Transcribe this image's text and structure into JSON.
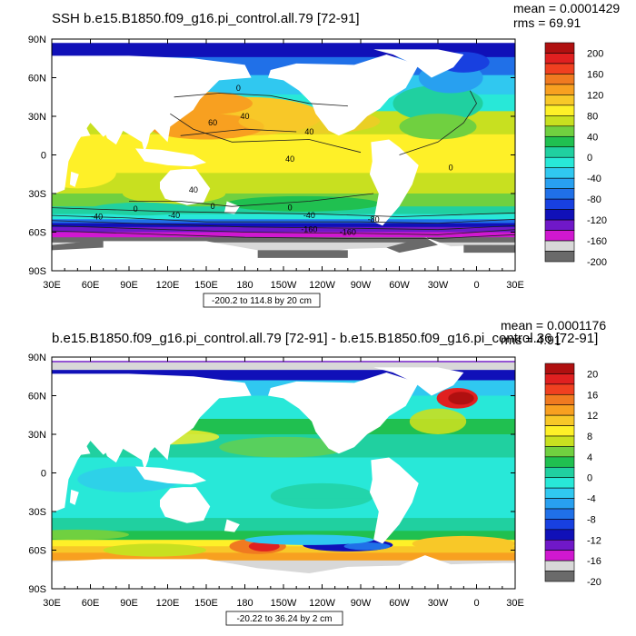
{
  "chart_data": [
    {
      "type": "heatmap",
      "title": "SSH b.e15.B1850.f09_g16.pi_control.all.79 [72-91]",
      "stats": {
        "mean": "mean = 0.0001429",
        "rms": "rms = 69.91"
      },
      "subtitle": "-200.2 to 114.8 by 20 cm",
      "x_ticks": [
        "30E",
        "60E",
        "90E",
        "120E",
        "150E",
        "180",
        "150W",
        "120W",
        "90W",
        "60W",
        "30W",
        "0",
        "30E"
      ],
      "y_ticks": [
        "90N",
        "60N",
        "30N",
        "0",
        "30S",
        "60S",
        "90S"
      ],
      "colorbar": {
        "labels": [
          "200",
          "160",
          "120",
          "80",
          "40",
          "0",
          "-40",
          "-80",
          "-120",
          "-160",
          "-200"
        ],
        "colors": [
          "#b01010",
          "#e02020",
          "#f04020",
          "#f07a20",
          "#f8a020",
          "#f8c828",
          "#fef028",
          "#c8e020",
          "#70d040",
          "#20c050",
          "#20d0a0",
          "#28e8d8",
          "#30c8f0",
          "#28a0f0",
          "#2070e8",
          "#1840e0",
          "#1010b8",
          "#7018c8",
          "#d018d0",
          "#d8d8d8",
          "#6a6a6a"
        ]
      },
      "contour_labels": [
        "0",
        "40",
        "60",
        "40",
        "40",
        "40",
        "0",
        "0",
        "-40",
        "-160",
        "0",
        "-40",
        "-40",
        "-80",
        "-160",
        "0"
      ]
    },
    {
      "type": "heatmap",
      "title": "b.e15.B1850.f09_g16.pi_control.all.79 [72-91] - b.e15.B1850.f09_g16.pi_control.36 [72-91]",
      "stats": {
        "mean": "mean = 0.0001176",
        "rms": "rms = 4.91"
      },
      "subtitle": "-20.22 to 36.24 by 2 cm",
      "x_ticks": [
        "30E",
        "60E",
        "90E",
        "120E",
        "150E",
        "180",
        "150W",
        "120W",
        "90W",
        "60W",
        "30W",
        "0",
        "30E"
      ],
      "y_ticks": [
        "90N",
        "60N",
        "30N",
        "0",
        "30S",
        "60S",
        "90S"
      ],
      "colorbar": {
        "labels": [
          "20",
          "16",
          "12",
          "8",
          "4",
          "0",
          "-4",
          "-8",
          "-12",
          "-16",
          "-20"
        ],
        "colors": [
          "#b01010",
          "#e02020",
          "#f04020",
          "#f07a20",
          "#f8a020",
          "#f8c828",
          "#fef028",
          "#c8e020",
          "#70d040",
          "#20c050",
          "#20d0a0",
          "#28e8d8",
          "#30c8f0",
          "#28a0f0",
          "#2070e8",
          "#1840e0",
          "#1010b8",
          "#7018c8",
          "#d018d0",
          "#d8d8d8",
          "#6a6a6a"
        ]
      }
    }
  ]
}
